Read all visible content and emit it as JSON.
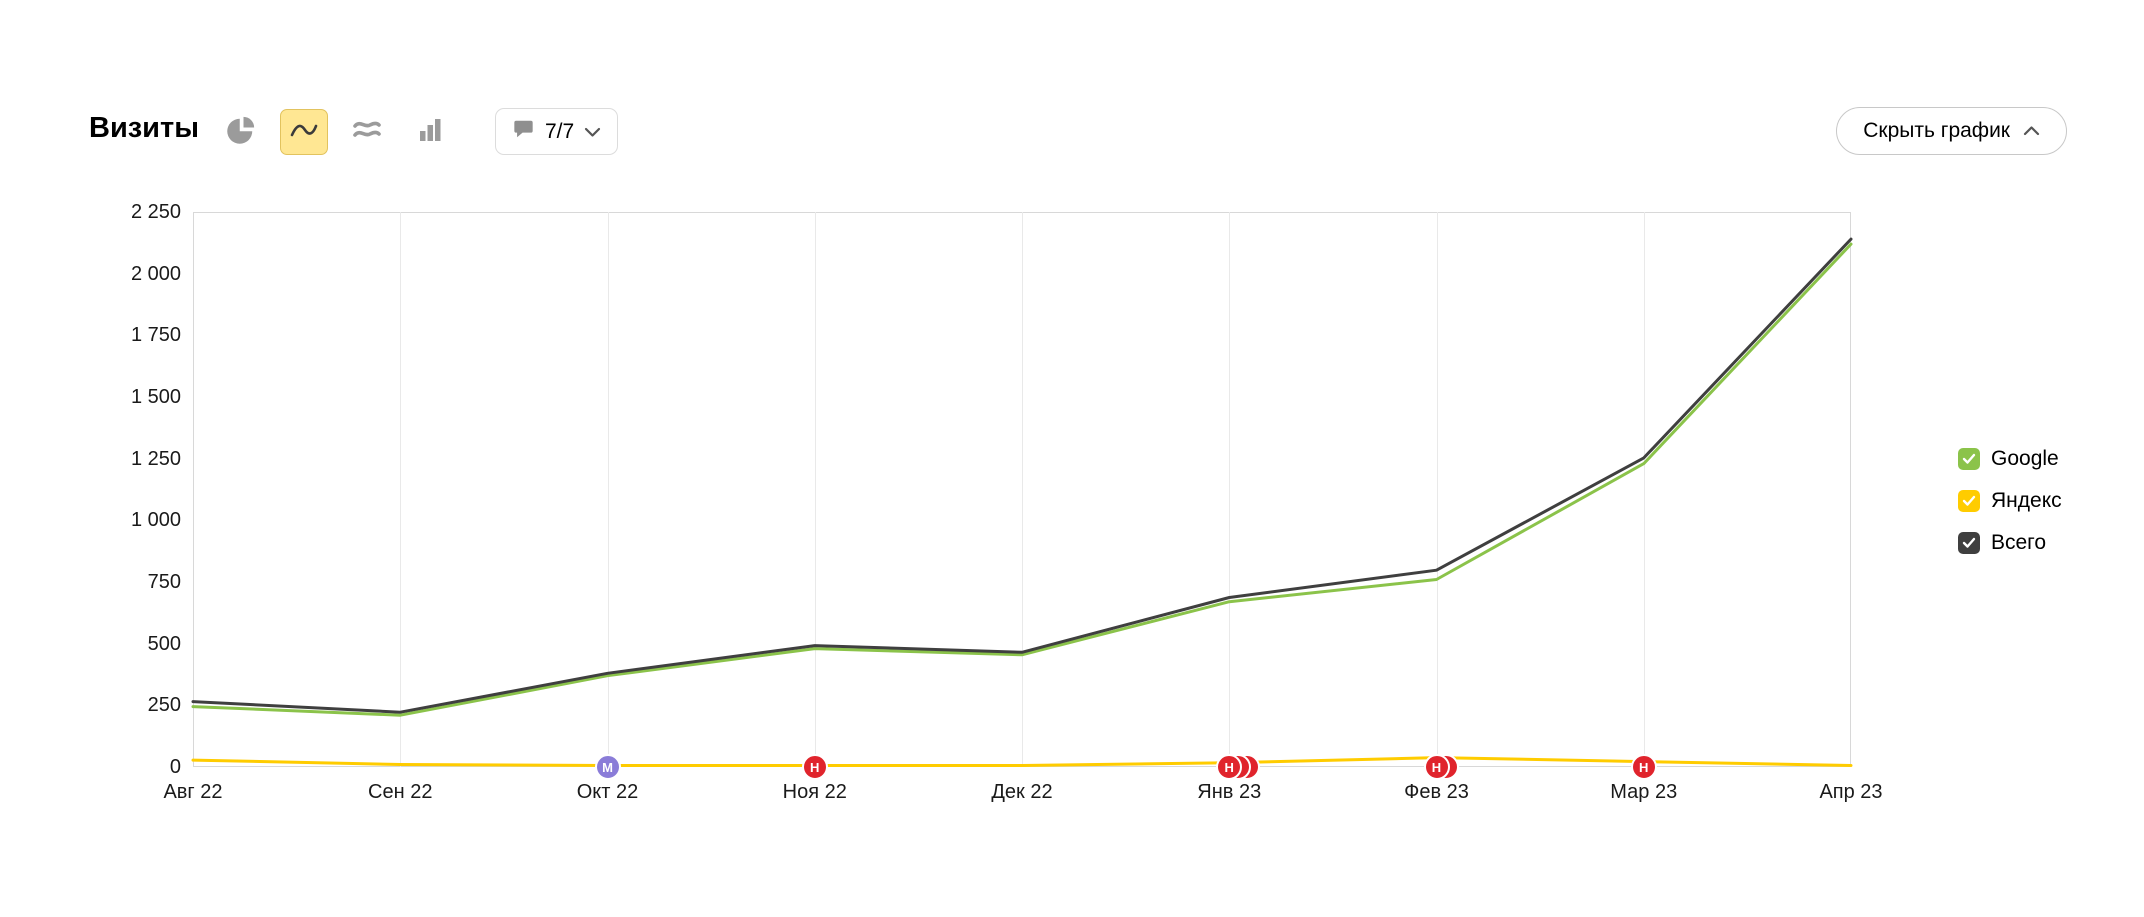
{
  "header": {
    "title": "Визиты",
    "notes_dropdown": {
      "label": "7/7"
    },
    "hide_chart_label": "Скрыть график"
  },
  "toolbar": {
    "view_icons": [
      {
        "icon": "pie-chart-icon",
        "selected": false
      },
      {
        "icon": "line-chart-icon",
        "selected": true
      },
      {
        "icon": "area-chart-icon",
        "selected": false
      },
      {
        "icon": "bar-chart-icon",
        "selected": false
      }
    ],
    "selected_bg": "#ffe793",
    "selected_border": "#e2c35e"
  },
  "legend": [
    {
      "label": "Google",
      "color": "#8bc34a",
      "checked": true
    },
    {
      "label": "Яндекс",
      "color": "#ffcc00",
      "checked": true
    },
    {
      "label": "Всего",
      "color": "#3f3f3f",
      "checked": true
    }
  ],
  "chart_data": {
    "type": "line",
    "title": "Визиты",
    "categories": [
      "Авг 22",
      "Сен 22",
      "Окт 22",
      "Ноя 22",
      "Дек 22",
      "Янв 23",
      "Фев 23",
      "Мар 23",
      "Апр 23"
    ],
    "series": [
      {
        "name": "Google",
        "color": "#8bc34a",
        "values": [
          245,
          210,
          370,
          480,
          455,
          670,
          760,
          1230,
          2120
        ]
      },
      {
        "name": "Яндекс",
        "color": "#ffcc00",
        "values": [
          28,
          10,
          6,
          6,
          6,
          17,
          38,
          22,
          6
        ]
      },
      {
        "name": "Всего",
        "color": "#3f3f3f",
        "values": [
          265,
          222,
          380,
          492,
          465,
          687,
          798,
          1253,
          2140
        ]
      }
    ],
    "ylim": [
      0,
      2250
    ],
    "yticks": [
      0,
      250,
      500,
      750,
      1000,
      1250,
      1500,
      1750,
      2000,
      2250
    ],
    "xlabel": "",
    "ylabel": "",
    "grid": "vertical-only",
    "legend_position": "right",
    "annotations": [
      {
        "x": "Окт 22",
        "label": "М",
        "color": "#8a7cd8",
        "count": 1
      },
      {
        "x": "Ноя 22",
        "label": "Н",
        "color": "#e0242c",
        "count": 1
      },
      {
        "x": "Янв 23",
        "label": "Н",
        "color": "#e0242c",
        "count": 3
      },
      {
        "x": "Фев 23",
        "label": "Н",
        "color": "#e0242c",
        "count": 2
      },
      {
        "x": "Мар 23",
        "label": "Н",
        "color": "#e0242c",
        "count": 1
      }
    ]
  }
}
